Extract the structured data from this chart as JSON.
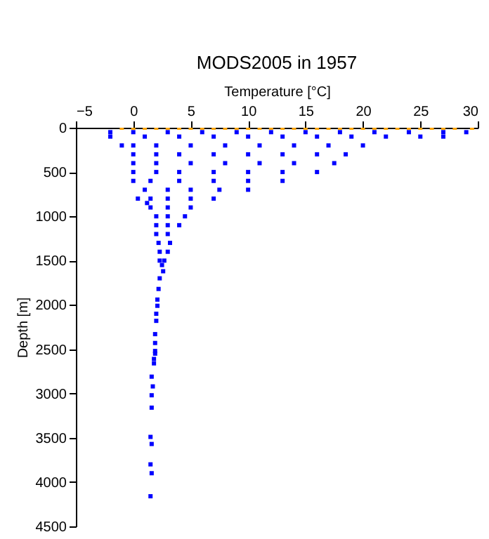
{
  "chart_data": {
    "type": "scatter",
    "title": "MODS2005 in 1957",
    "xlabel": "Temperature [°C]",
    "ylabel": "Depth [m]",
    "xlim": [
      -5,
      30
    ],
    "xticks": [
      -5,
      0,
      5,
      10,
      15,
      20,
      25,
      30
    ],
    "ylim": [
      4500,
      0
    ],
    "yticks": [
      0,
      500,
      1000,
      1500,
      2000,
      2500,
      3000,
      3500,
      4000,
      4500
    ],
    "marker": "square",
    "series": [
      {
        "color": "#0000ff",
        "x": [
          -2,
          0,
          3,
          6,
          9,
          12,
          15,
          18,
          21,
          24,
          27,
          29,
          -2,
          1,
          4,
          7,
          10,
          13,
          16,
          19,
          22,
          25,
          27,
          -1,
          0,
          2,
          5,
          8,
          11,
          14,
          17,
          20,
          0,
          2,
          4,
          7,
          10,
          13,
          16,
          18.5,
          0,
          2,
          5,
          8,
          11,
          14,
          17.5,
          0,
          2,
          4,
          7,
          10,
          13,
          16,
          0,
          1.5,
          4,
          7,
          10,
          13,
          1,
          3,
          5,
          7.5,
          10,
          1.5,
          3,
          5,
          7,
          1.5,
          3,
          5,
          2,
          3,
          4.5,
          2,
          3,
          4,
          2,
          3,
          2.2,
          3.2,
          2.3,
          3,
          2.3,
          2.7,
          0.4,
          1.2,
          2.5,
          2.6,
          2.3,
          2.2,
          2.1,
          2.1,
          2,
          2,
          1.9,
          1.9,
          1.9,
          1.9,
          1.8,
          1.8,
          1.6,
          1.7,
          1.6,
          1.6,
          1.5,
          1.6,
          1.5,
          1.6,
          1.5
        ],
        "values": [
          50,
          50,
          50,
          50,
          50,
          50,
          50,
          50,
          50,
          50,
          50,
          50,
          100,
          100,
          100,
          100,
          100,
          100,
          100,
          100,
          100,
          100,
          100,
          200,
          200,
          200,
          200,
          200,
          200,
          200,
          200,
          200,
          300,
          300,
          300,
          300,
          300,
          300,
          300,
          300,
          400,
          400,
          400,
          400,
          400,
          400,
          400,
          500,
          500,
          500,
          500,
          500,
          500,
          500,
          600,
          600,
          600,
          600,
          600,
          600,
          700,
          700,
          700,
          700,
          700,
          800,
          800,
          800,
          800,
          900,
          900,
          900,
          1000,
          1000,
          1000,
          1100,
          1100,
          1100,
          1200,
          1200,
          1300,
          1300,
          1400,
          1400,
          1500,
          1500,
          800,
          850,
          1550,
          1620,
          1700,
          1820,
          1940,
          2010,
          2100,
          2180,
          2330,
          2430,
          2520,
          2550,
          2610,
          2660,
          2810,
          2920,
          3020,
          3160,
          3490,
          3570,
          3800,
          3900,
          4160
        ]
      },
      {
        "color": "#ffa500",
        "x": [
          -1,
          0,
          1,
          2,
          3,
          4,
          5,
          6,
          7,
          8,
          9,
          10,
          11,
          12,
          13,
          14,
          15,
          16,
          17,
          18,
          19,
          20,
          21,
          22,
          23,
          24,
          25,
          26,
          27,
          28,
          29.5
        ],
        "values": [
          0,
          0,
          0,
          0,
          0,
          0,
          0,
          0,
          0,
          0,
          0,
          0,
          0,
          0,
          0,
          0,
          0,
          0,
          0,
          0,
          0,
          0,
          0,
          0,
          0,
          0,
          0,
          0,
          0,
          0,
          0
        ]
      }
    ]
  }
}
